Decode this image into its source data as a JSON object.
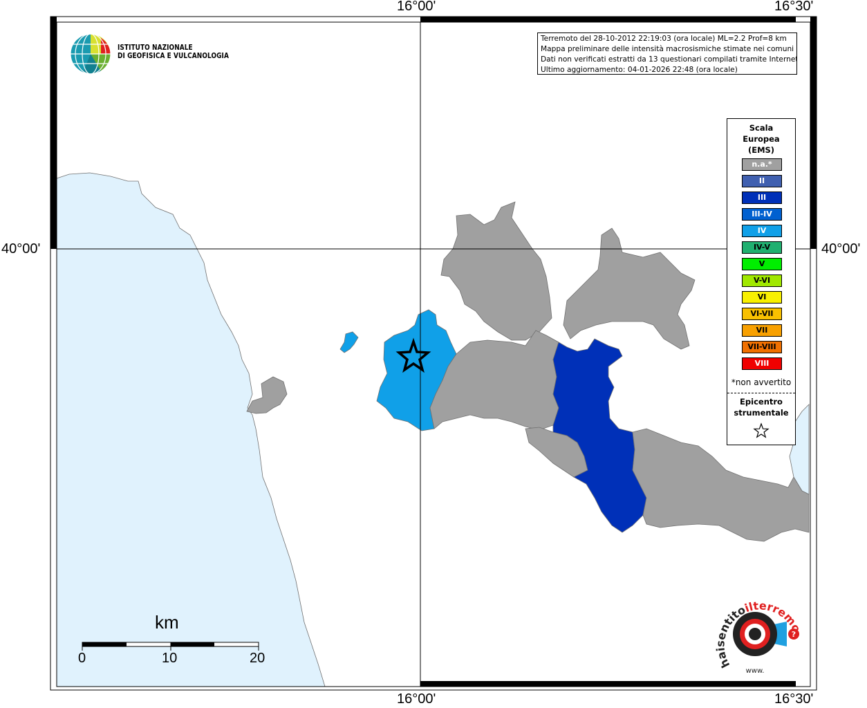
{
  "coordinates": {
    "lon_top_left": "16°00'",
    "lon_top_right": "16°30'",
    "lon_bottom_left": "16°00'",
    "lon_bottom_right": "16°30'",
    "lat_left": "40°00'",
    "lat_right": "40°00'"
  },
  "institution": {
    "line1": "ISTITUTO NAZIONALE",
    "line2": "DI GEOFISICA E VULCANOLOGIA"
  },
  "info": {
    "line1": "Terremoto del 28-10-2012 22:19:03 (ora locale) ML=2.2 Prof=8 km",
    "line2": "Mappa preliminare delle intensità macrosismiche stimate nei comuni",
    "line3": "Dati non verificati estratti da 13 questionari compilati tramite Internet.",
    "line4": "Ultimo aggiornamento: 04-01-2026 22:48 (ora locale)"
  },
  "legend": {
    "title_line1": "Scala",
    "title_line2": "Europea",
    "title_line3": "(EMS)",
    "items": [
      {
        "label": "n.a.*",
        "color": "#a0a0a0",
        "text_color": "#ffffff"
      },
      {
        "label": "II",
        "color": "#4060b0",
        "text_color": "#ffffff"
      },
      {
        "label": "III",
        "color": "#0030b8",
        "text_color": "#ffffff"
      },
      {
        "label": "III-IV",
        "color": "#0060d0",
        "text_color": "#ffffff"
      },
      {
        "label": "IV",
        "color": "#10a0e8",
        "text_color": "#ffffff"
      },
      {
        "label": "IV-V",
        "color": "#20b070",
        "text_color": "#000000"
      },
      {
        "label": "V",
        "color": "#00ee00",
        "text_color": "#000000"
      },
      {
        "label": "V-VI",
        "color": "#a0e800",
        "text_color": "#000000"
      },
      {
        "label": "VI",
        "color": "#f8f000",
        "text_color": "#000000"
      },
      {
        "label": "VI-VII",
        "color": "#f8c000",
        "text_color": "#000000"
      },
      {
        "label": "VII",
        "color": "#f8a000",
        "text_color": "#000000"
      },
      {
        "label": "VII-VIII",
        "color": "#f07000",
        "text_color": "#000000"
      },
      {
        "label": "VIII",
        "color": "#f00000",
        "text_color": "#ffffff"
      }
    ],
    "note": "*non avvertito",
    "epicenter_line1": "Epicentro",
    "epicenter_line2": "strumentale"
  },
  "scalebar": {
    "unit": "km",
    "labels": [
      "0",
      "10",
      "20"
    ]
  },
  "colors": {
    "sea": "#e0f2fd",
    "na_gray": "#a0a0a0",
    "intensity_III": "#0030b8",
    "intensity_IV": "#10a0e8"
  },
  "logo_text": {
    "haisentito": "haisentito",
    "ilterremoto": "ilterremoto.it",
    "www": "www."
  }
}
